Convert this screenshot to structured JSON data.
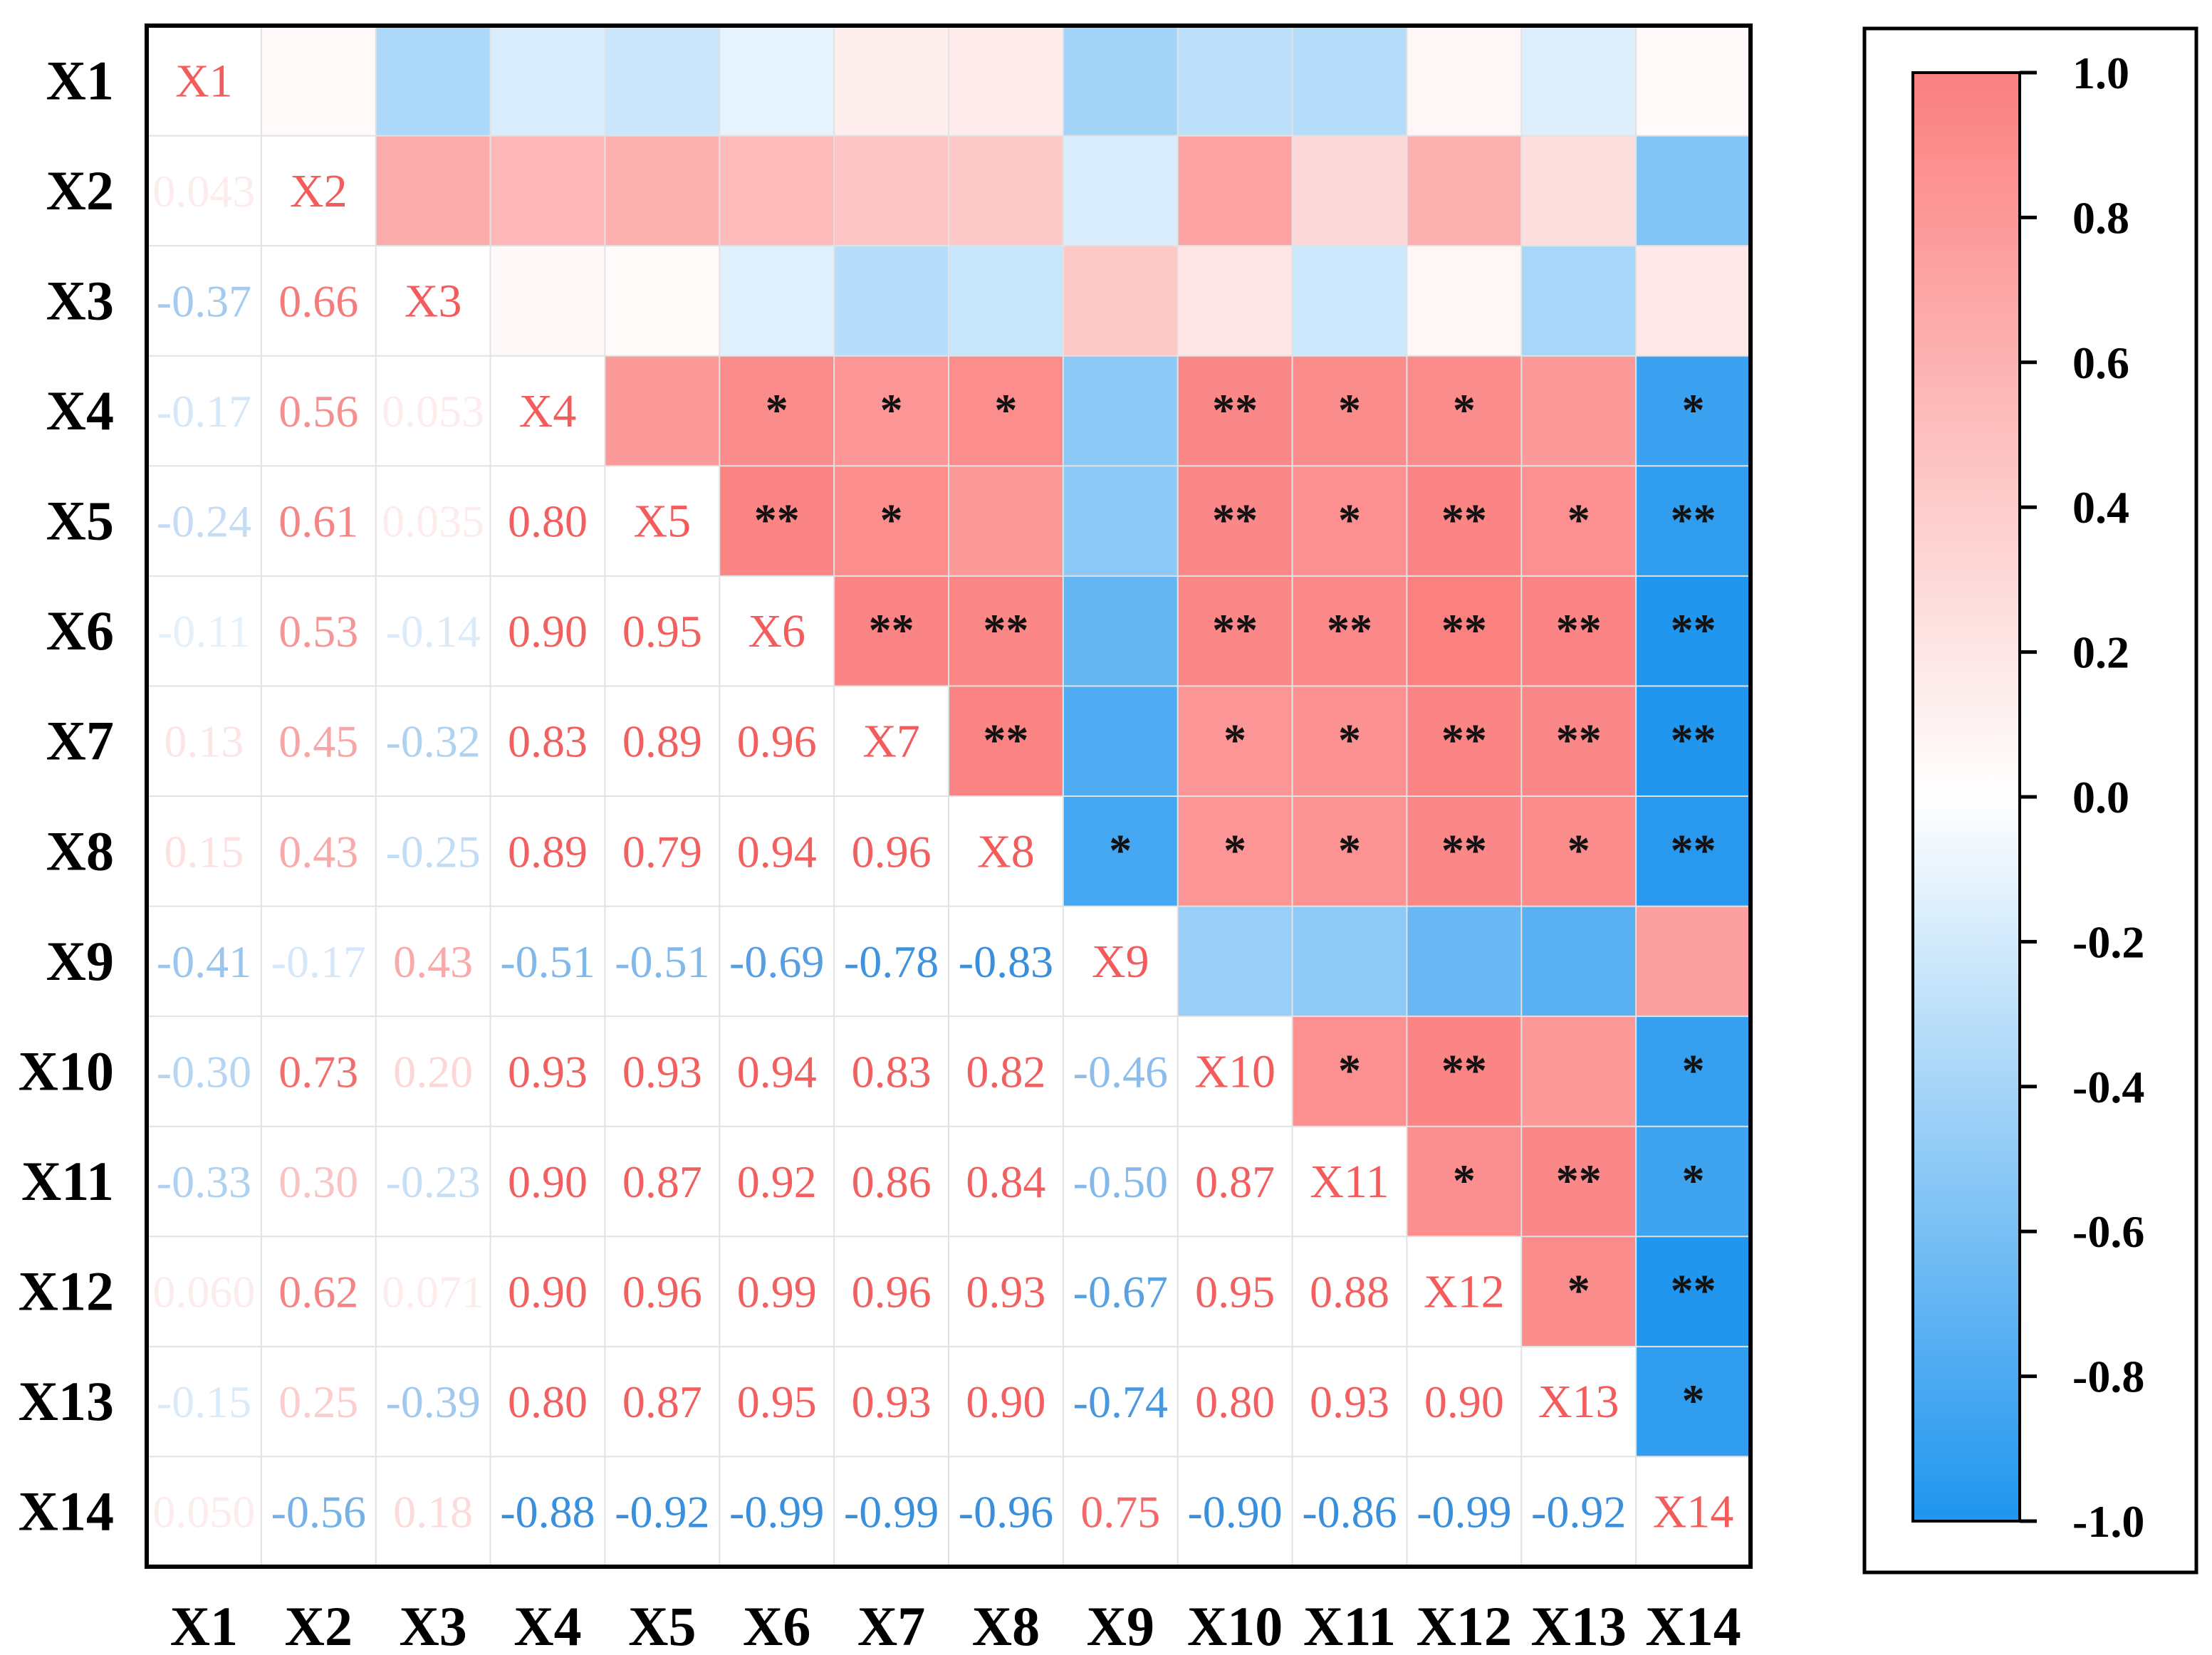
{
  "chart_data": {
    "type": "heatmap",
    "title": "",
    "variables": [
      "X1",
      "X2",
      "X3",
      "X4",
      "X5",
      "X6",
      "X7",
      "X8",
      "X9",
      "X10",
      "X11",
      "X12",
      "X13",
      "X14"
    ],
    "lower_triangle_labels": [
      [],
      [
        "0.043"
      ],
      [
        "-0.37",
        "0.66"
      ],
      [
        "-0.17",
        "0.56",
        "0.053"
      ],
      [
        "-0.24",
        "0.61",
        "0.035",
        "0.80"
      ],
      [
        "-0.11",
        "0.53",
        "-0.14",
        "0.90",
        "0.95"
      ],
      [
        "0.13",
        "0.45",
        "-0.32",
        "0.83",
        "0.89",
        "0.96"
      ],
      [
        "0.15",
        "0.43",
        "-0.25",
        "0.89",
        "0.79",
        "0.94",
        "0.96"
      ],
      [
        "-0.41",
        "-0.17",
        "0.43",
        "-0.51",
        "-0.51",
        "-0.69",
        "-0.78",
        "-0.83"
      ],
      [
        "-0.30",
        "0.73",
        "0.20",
        "0.93",
        "0.93",
        "0.94",
        "0.83",
        "0.82",
        "-0.46"
      ],
      [
        "-0.33",
        "0.30",
        "-0.23",
        "0.90",
        "0.87",
        "0.92",
        "0.86",
        "0.84",
        "-0.50",
        "0.87"
      ],
      [
        "0.060",
        "0.62",
        "0.071",
        "0.90",
        "0.96",
        "0.99",
        "0.96",
        "0.93",
        "-0.67",
        "0.95",
        "0.88"
      ],
      [
        "-0.15",
        "0.25",
        "-0.39",
        "0.80",
        "0.87",
        "0.95",
        "0.93",
        "0.90",
        "-0.74",
        "0.80",
        "0.93",
        "0.90"
      ],
      [
        "0.050",
        "-0.56",
        "0.18",
        "-0.88",
        "-0.92",
        "-0.99",
        "-0.99",
        "-0.96",
        "0.75",
        "-0.90",
        "-0.86",
        "-0.99",
        "-0.92"
      ]
    ],
    "significance_upper": [
      [
        "",
        "",
        "",
        "",
        "",
        "",
        "",
        "",
        "",
        "",
        "",
        "",
        "",
        ""
      ],
      [
        "",
        "",
        "",
        "",
        "",
        "",
        "",
        "",
        "",
        "",
        "",
        "",
        "",
        ""
      ],
      [
        "",
        "",
        "",
        "",
        "",
        "",
        "",
        "",
        "",
        "",
        "",
        "",
        "",
        ""
      ],
      [
        "",
        "",
        "",
        "",
        "",
        "*",
        "*",
        "*",
        "",
        "**",
        "*",
        "*",
        "",
        "*"
      ],
      [
        "",
        "",
        "",
        "",
        "",
        "**",
        "*",
        "",
        "",
        "**",
        "*",
        "**",
        "*",
        "**"
      ],
      [
        "",
        "",
        "",
        "",
        "",
        "",
        "**",
        "**",
        "",
        "**",
        "**",
        "**",
        "**",
        "**"
      ],
      [
        "",
        "",
        "",
        "",
        "",
        "",
        "",
        "**",
        "",
        "*",
        "*",
        "**",
        "**",
        "**"
      ],
      [
        "",
        "",
        "",
        "",
        "",
        "",
        "",
        "",
        "*",
        "*",
        "*",
        "**",
        "*",
        "**"
      ],
      [
        "",
        "",
        "",
        "",
        "",
        "",
        "",
        "",
        "",
        "",
        "",
        "",
        "",
        ""
      ],
      [
        "",
        "",
        "",
        "",
        "",
        "",
        "",
        "",
        "",
        "",
        "*",
        "**",
        "",
        "*"
      ],
      [
        "",
        "",
        "",
        "",
        "",
        "",
        "",
        "",
        "",
        "",
        "",
        "*",
        "**",
        "*"
      ],
      [
        "",
        "",
        "",
        "",
        "",
        "",
        "",
        "",
        "",
        "",
        "",
        "",
        "*",
        "**"
      ],
      [
        "",
        "",
        "",
        "",
        "",
        "",
        "",
        "",
        "",
        "",
        "",
        "",
        "",
        "*"
      ],
      [
        "",
        "",
        "",
        "",
        "",
        "",
        "",
        "",
        "",
        "",
        "",
        "",
        "",
        ""
      ]
    ],
    "colorbar": {
      "min": -1.0,
      "max": 1.0,
      "tick_labels": [
        "1.0",
        "0.8",
        "0.6",
        "0.4",
        "0.2",
        "0.0",
        "-0.2",
        "-0.4",
        "-0.6",
        "-0.8",
        "-1.0"
      ],
      "tick_values": [
        1.0,
        0.8,
        0.6,
        0.4,
        0.2,
        0.0,
        -0.2,
        -0.4,
        -0.6,
        -0.8,
        -1.0
      ],
      "positive_color": "#fb7f7f",
      "zero_color": "#ffffff",
      "negative_color": "#1f95ee"
    },
    "upper_cell_color": "coefficient",
    "diagonal_text_color": "#f45b5b"
  }
}
